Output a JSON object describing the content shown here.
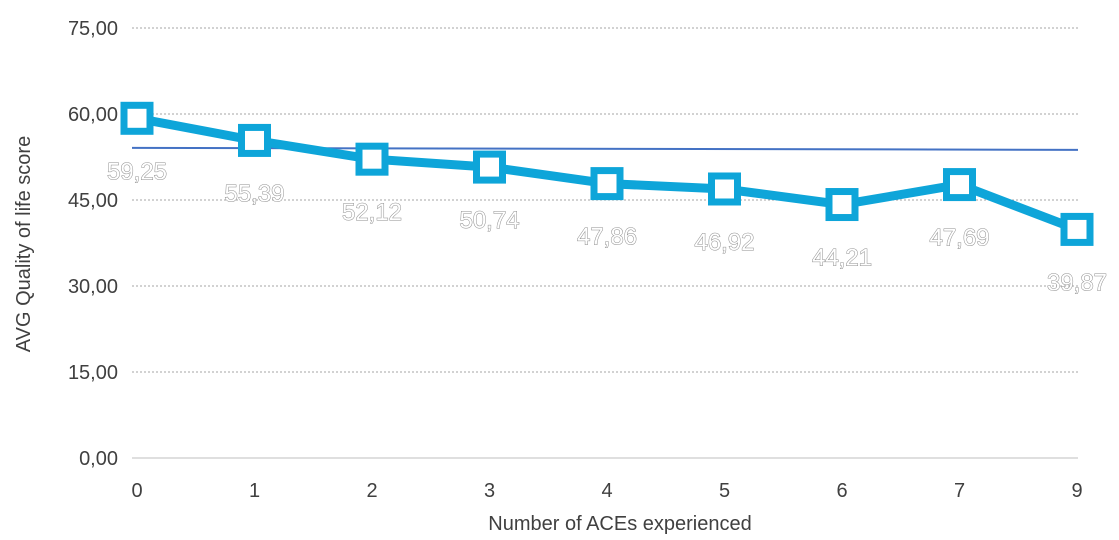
{
  "chart_data": {
    "type": "line",
    "title": "",
    "xlabel": "Number of ACEs experienced",
    "ylabel": "AVG Quality of life score",
    "categories": [
      "0",
      "1",
      "2",
      "3",
      "4",
      "5",
      "6",
      "7",
      "9"
    ],
    "series": [
      {
        "values": [
          59.25,
          55.39,
          52.12,
          50.74,
          47.86,
          46.92,
          44.21,
          47.69,
          39.87
        ],
        "labels": [
          "59,25",
          "55,39",
          "52,12",
          "50,74",
          "47,86",
          "46,92",
          "44,21",
          "47,69",
          "39,87"
        ],
        "color": "#0ea5d9"
      }
    ],
    "reference_line": {
      "value": 54.1,
      "color": "#4472c4"
    },
    "ylim": [
      0,
      75
    ],
    "yticks": [
      0,
      15,
      30,
      45,
      60,
      75
    ],
    "ytick_labels": [
      "0,00",
      "15,00",
      "30,00",
      "45,00",
      "60,00",
      "75,00"
    ],
    "grid": true,
    "legend": "none"
  }
}
